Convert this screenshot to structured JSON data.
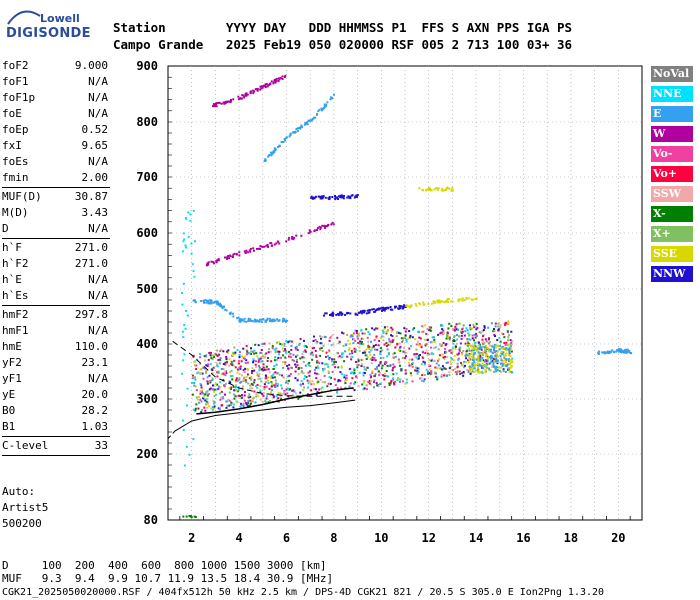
{
  "logo": {
    "top": "Lowell",
    "main": "DIGISONDE"
  },
  "header": {
    "line1": "Station        YYYY DAY   DDD HHMMSS P1  FFS S AXN PPS IGA PS",
    "line2": "Campo Grande   2025 Feb19 050 020000 RSF 005 2 713 100 03+ 36"
  },
  "params": [
    {
      "name": "foF2",
      "value": "9.000"
    },
    {
      "name": "foF1",
      "value": "N/A"
    },
    {
      "name": "foF1p",
      "value": "N/A"
    },
    {
      "name": "foE",
      "value": "N/A"
    },
    {
      "name": "foEp",
      "value": "0.52"
    },
    {
      "name": "fxI",
      "value": "9.65"
    },
    {
      "name": "foEs",
      "value": "N/A"
    },
    {
      "name": "fmin",
      "value": "2.00"
    },
    {
      "name": "MUF(D)",
      "value": "30.87"
    },
    {
      "name": "M(D)",
      "value": "3.43"
    },
    {
      "name": "D",
      "value": "N/A"
    },
    {
      "name": "h`F",
      "value": "271.0"
    },
    {
      "name": "h`F2",
      "value": "271.0"
    },
    {
      "name": "h`E",
      "value": "N/A"
    },
    {
      "name": "h`Es",
      "value": "N/A"
    },
    {
      "name": "hmF2",
      "value": "297.8"
    },
    {
      "name": "hmF1",
      "value": "N/A"
    },
    {
      "name": "hmE",
      "value": "110.0"
    },
    {
      "name": "yF2",
      "value": "23.1"
    },
    {
      "name": "yF1",
      "value": "N/A"
    },
    {
      "name": "yE",
      "value": "20.0"
    },
    {
      "name": "B0",
      "value": "28.2"
    },
    {
      "name": "B1",
      "value": "1.03"
    },
    {
      "name": "C-level",
      "value": "33"
    }
  ],
  "notes": [
    "Auto:",
    "Artist5",
    "500200"
  ],
  "legend": [
    {
      "label": "NoVal",
      "color": "#808080"
    },
    {
      "label": "NNE",
      "color": "#00e0ff"
    },
    {
      "label": "E",
      "color": "#33a0f0"
    },
    {
      "label": "W",
      "color": "#b000a0"
    },
    {
      "label": "Vo-",
      "color": "#f040a0"
    },
    {
      "label": "Vo+",
      "color": "#ff0040"
    },
    {
      "label": "SSW",
      "color": "#f0a8a8"
    },
    {
      "label": "X-",
      "color": "#008000"
    },
    {
      "label": "X+",
      "color": "#80c060"
    },
    {
      "label": "SSE",
      "color": "#d8d800"
    },
    {
      "label": "NNW",
      "color": "#2010d0"
    }
  ],
  "bottom": {
    "d_line": "D     100  200  400  600  800 1000 1500 3000 [km]",
    "muf_line": "MUF   9.3  9.4  9.9 10.7 11.9 13.5 18.4 30.9 [MHz]",
    "footer": "CGK21_2025050020000.RSF / 404fx512h 50 kHz 2.5 km / DPS-4D CGK21 821 / 20.5 S 305.0 E Ion2Png 1.3.20"
  },
  "chart_data": {
    "type": "scatter",
    "xlabel": "",
    "ylabel": "",
    "xlim": [
      1,
      21
    ],
    "ylim": [
      80,
      900
    ],
    "x_ticks": [
      2,
      4,
      6,
      8,
      10,
      12,
      14,
      16,
      18,
      20
    ],
    "y_ticks": [
      80,
      200,
      300,
      400,
      500,
      600,
      700,
      800,
      900
    ],
    "grid": "dotted",
    "legend_position": "right",
    "traces": [
      {
        "name": "W",
        "points": [
          [
            2.8,
            830
          ],
          [
            4,
            845
          ],
          [
            5,
            865
          ],
          [
            6,
            885
          ]
        ]
      },
      {
        "name": "E",
        "points": [
          [
            5,
            730
          ],
          [
            6,
            775
          ],
          [
            7,
            805
          ],
          [
            8,
            850
          ]
        ]
      },
      {
        "name": "NNW",
        "points": [
          [
            7,
            665
          ],
          [
            8,
            665
          ],
          [
            9,
            668
          ]
        ]
      },
      {
        "name": "SSE",
        "points": [
          [
            11.5,
            680
          ],
          [
            13,
            680
          ]
        ]
      },
      {
        "name": "W",
        "points": [
          [
            2.5,
            545
          ],
          [
            4,
            565
          ],
          [
            6,
            590
          ],
          [
            8,
            620
          ]
        ]
      },
      {
        "name": "NNW",
        "points": [
          [
            7.5,
            455
          ],
          [
            9,
            458
          ],
          [
            10,
            465
          ],
          [
            11,
            470
          ]
        ]
      },
      {
        "name": "SSE",
        "points": [
          [
            11,
            470
          ],
          [
            12.5,
            480
          ],
          [
            14,
            485
          ]
        ]
      },
      {
        "name": "E",
        "points": [
          [
            2,
            480
          ],
          [
            3,
            478
          ],
          [
            4,
            445
          ],
          [
            5,
            445
          ],
          [
            6,
            445
          ]
        ]
      },
      {
        "name": "E",
        "points": [
          [
            19,
            385
          ],
          [
            20,
            390
          ],
          [
            20.5,
            388
          ]
        ]
      }
    ],
    "f2_trace": [
      [
        2.2,
        273
      ],
      [
        3,
        276
      ],
      [
        4,
        282
      ],
      [
        5,
        290
      ],
      [
        6,
        300
      ],
      [
        7,
        308
      ],
      [
        8,
        316
      ],
      [
        8.8,
        320
      ]
    ],
    "model_lower": [
      [
        1.3,
        242
      ],
      [
        2,
        260
      ],
      [
        3,
        270
      ],
      [
        4,
        275
      ],
      [
        5,
        280
      ],
      [
        6,
        285
      ],
      [
        7,
        288
      ],
      [
        8,
        293
      ],
      [
        8.9,
        298
      ]
    ],
    "model_upper": [
      [
        1.2,
        405
      ],
      [
        2,
        380
      ],
      [
        3,
        340
      ],
      [
        4,
        320
      ],
      [
        5,
        310
      ],
      [
        6,
        306
      ],
      [
        7,
        305
      ],
      [
        8,
        305
      ],
      [
        8.9,
        305
      ]
    ]
  }
}
